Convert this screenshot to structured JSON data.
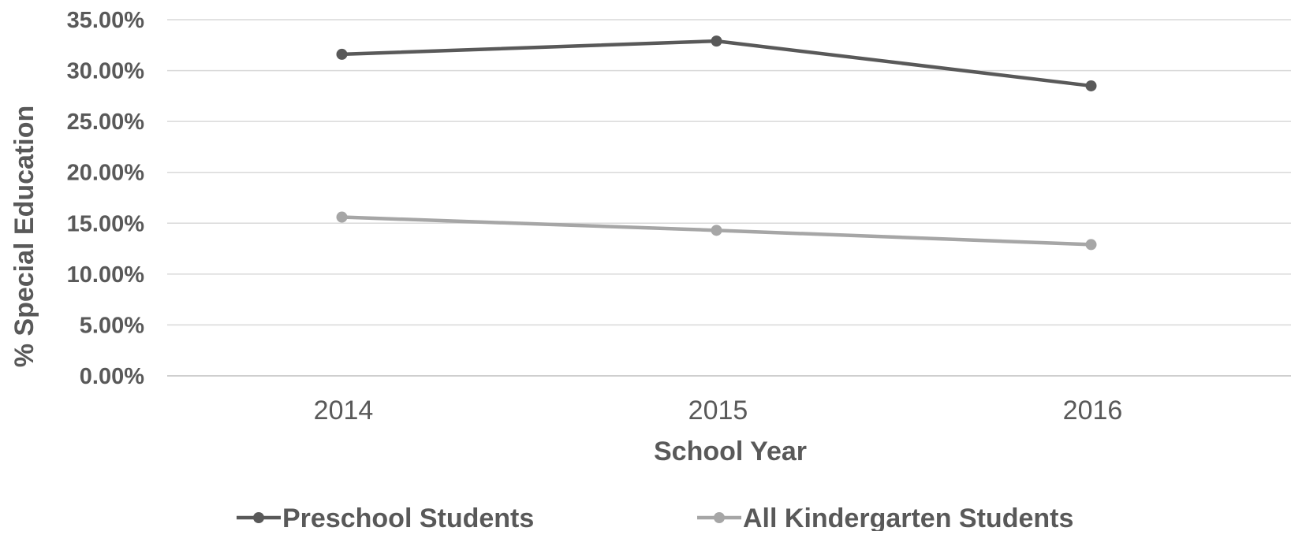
{
  "chart_data": {
    "type": "line",
    "title": "",
    "xlabel": "School Year",
    "ylabel": "% Special Education",
    "categories": [
      "2014",
      "2015",
      "2016"
    ],
    "ylim": [
      0,
      35
    ],
    "yticks": [
      "0.00%",
      "5.00%",
      "10.00%",
      "15.00%",
      "20.00%",
      "25.00%",
      "30.00%",
      "35.00%"
    ],
    "grid": true,
    "legend_position": "bottom",
    "series": [
      {
        "name": "Preschool Students",
        "values": [
          31.6,
          32.9,
          28.5
        ],
        "color": "#595959"
      },
      {
        "name": "All Kindergarten Students",
        "values": [
          15.6,
          14.3,
          12.9
        ],
        "color": "#a6a6a6"
      }
    ]
  }
}
